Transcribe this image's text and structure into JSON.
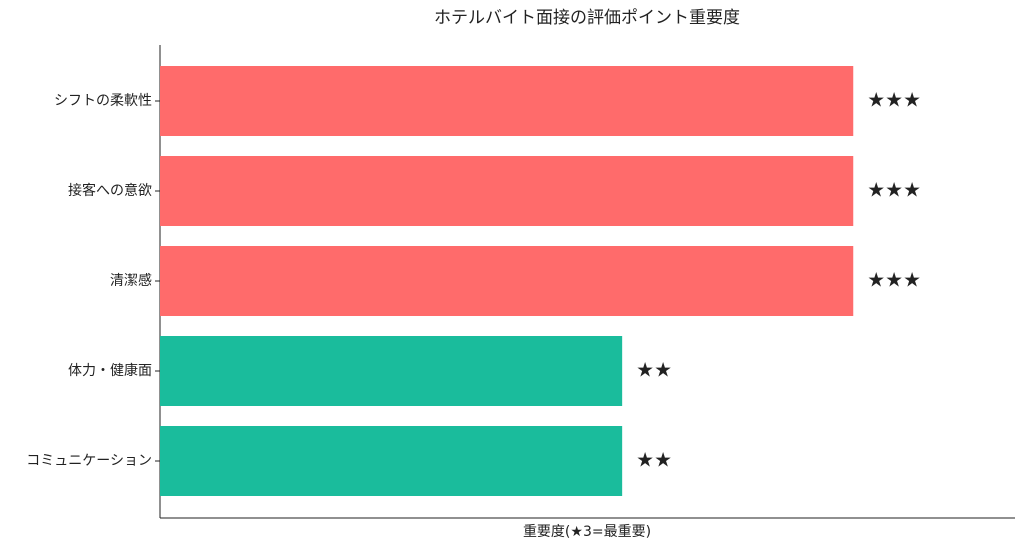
{
  "chart_data": {
    "type": "bar",
    "orientation": "horizontal",
    "title": "ホテルバイト面接の評価ポイント重要度",
    "xlabel": "重要度(★3=最重要)",
    "categories": [
      "シフトの柔軟性",
      "接客への意欲",
      "清潔感",
      "体力・健康面",
      "コミュニケーション"
    ],
    "values": [
      3,
      3,
      3,
      2,
      2
    ],
    "value_labels": [
      "★★★",
      "★★★",
      "★★★",
      "★★",
      "★★"
    ],
    "colors": [
      "#ff6b6b",
      "#ff6b6b",
      "#ff6b6b",
      "#1abc9c",
      "#1abc9c"
    ],
    "xlim": [
      0,
      3.7
    ]
  }
}
